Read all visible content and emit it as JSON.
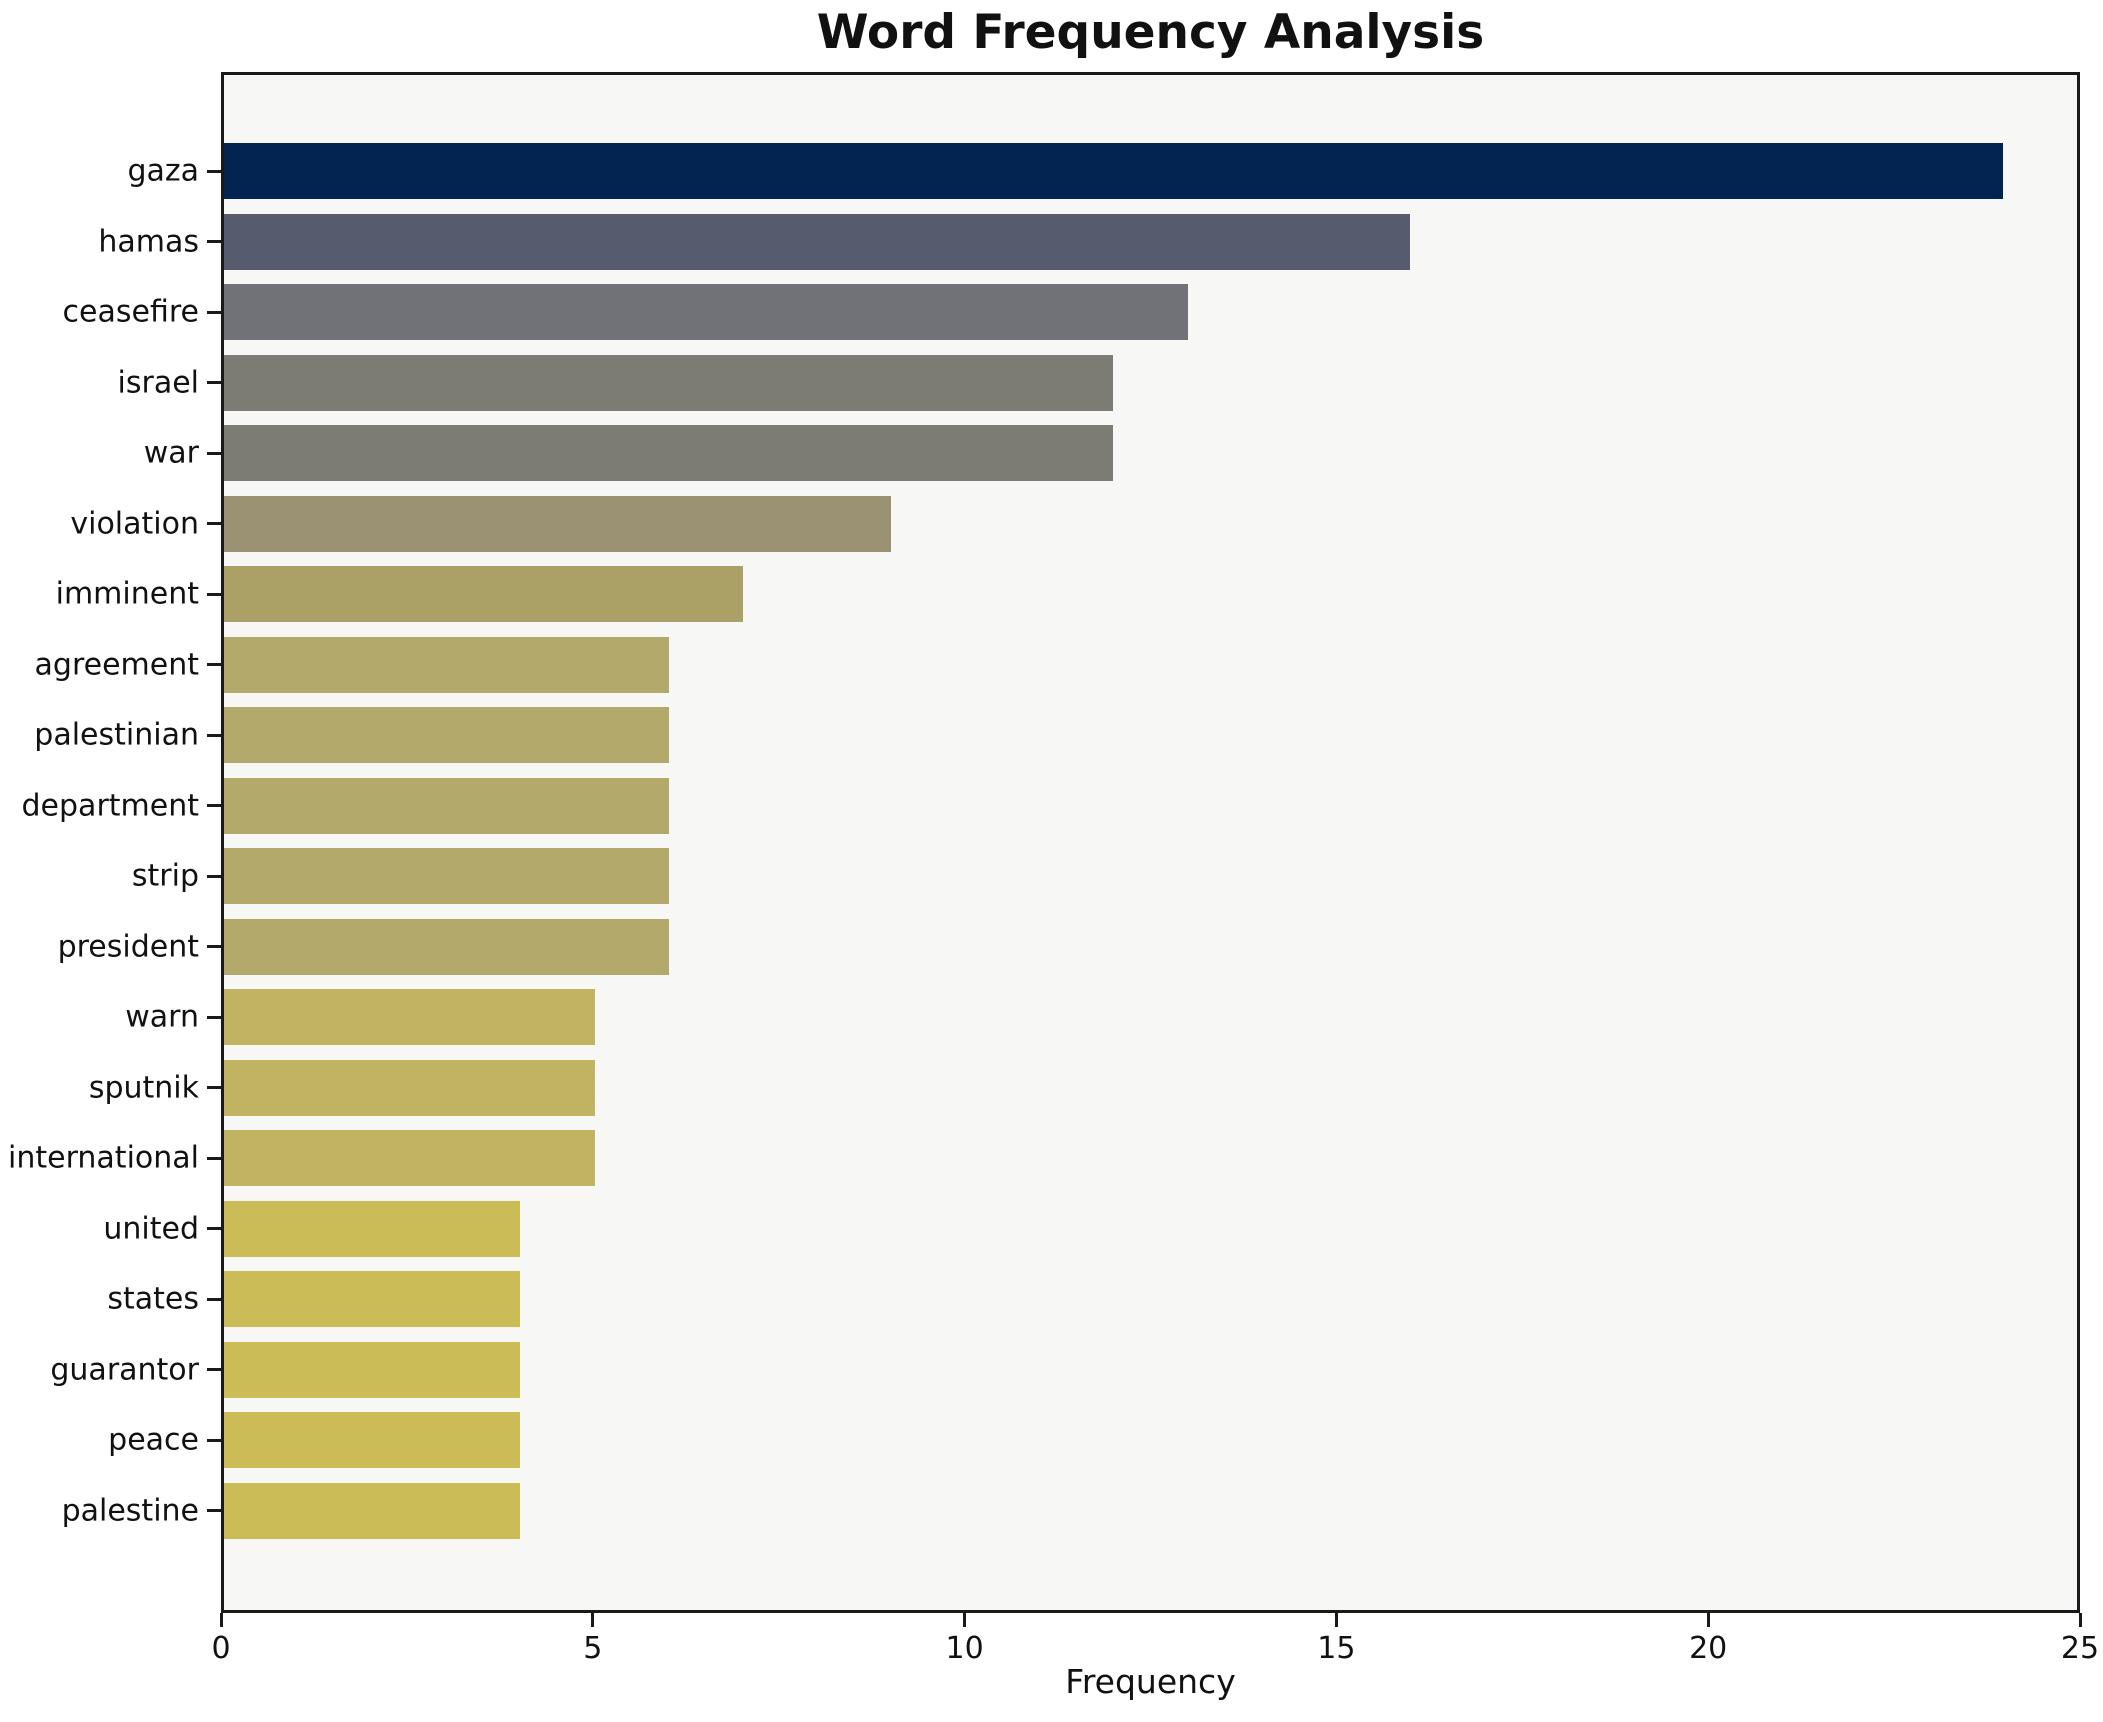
{
  "figure": {
    "background": "#ffffff",
    "plot_background": "#f7f7f6",
    "spine_color": "#1a1a1a"
  },
  "chart_data": {
    "type": "bar",
    "orientation": "horizontal",
    "title": "Word Frequency Analysis",
    "xlabel": "Frequency",
    "ylabel": "",
    "xlim": [
      0,
      25
    ],
    "x_ticks": [
      "0",
      "5",
      "10",
      "15",
      "20",
      "25"
    ],
    "grid": false,
    "legend_position": "none",
    "categories": [
      "gaza",
      "hamas",
      "ceasefire",
      "israel",
      "war",
      "violation",
      "imminent",
      "agreement",
      "palestinian",
      "department",
      "strip",
      "president",
      "warn",
      "sputnik",
      "international",
      "united",
      "states",
      "guarantor",
      "peace",
      "palestine"
    ],
    "values": [
      24,
      16,
      13,
      12,
      12,
      9,
      7,
      6,
      6,
      6,
      6,
      6,
      5,
      5,
      5,
      4,
      4,
      4,
      4,
      4
    ],
    "bar_colors": [
      "#032350",
      "#565c6e",
      "#717178",
      "#7c7c75",
      "#7c7c75",
      "#9a9272",
      "#aba167",
      "#b2a96a",
      "#b2a96a",
      "#b2a96a",
      "#b2a96a",
      "#b2a96a",
      "#c0b362",
      "#c0b362",
      "#c0b362",
      "#cbbc58",
      "#cbbc58",
      "#cbbc58",
      "#cbbc58",
      "#cbbc58"
    ]
  }
}
